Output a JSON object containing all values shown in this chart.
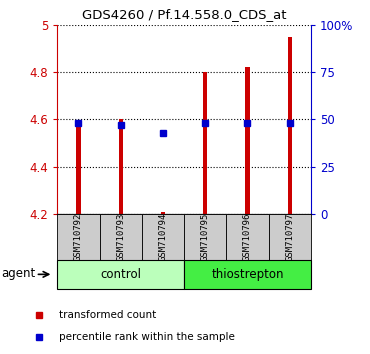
{
  "title": "GDS4260 / Pf.14.558.0_CDS_at",
  "samples": [
    "GSM710792",
    "GSM710793",
    "GSM710794",
    "GSM710795",
    "GSM710796",
    "GSM710797"
  ],
  "red_values": [
    4.57,
    4.6,
    4.21,
    4.8,
    4.82,
    4.95
  ],
  "blue_percentiles": [
    48,
    47,
    43,
    48,
    48,
    48
  ],
  "ylim_left": [
    4.2,
    5.0
  ],
  "ylim_right": [
    0,
    100
  ],
  "bar_color": "#cc0000",
  "dot_color": "#0000cc",
  "left_tick_color": "#cc0000",
  "right_tick_color": "#0000cc",
  "grid_color": "#000000",
  "sample_box_color": "#cccccc",
  "control_color": "#bbffbb",
  "thiostrepton_color": "#44ee44",
  "agent_label": "agent",
  "legend_items": [
    "transformed count",
    "percentile rank within the sample"
  ],
  "group_defs": [
    {
      "label": "control",
      "start": 0,
      "end": 2
    },
    {
      "label": "thiostrepton",
      "start": 3,
      "end": 5
    }
  ]
}
